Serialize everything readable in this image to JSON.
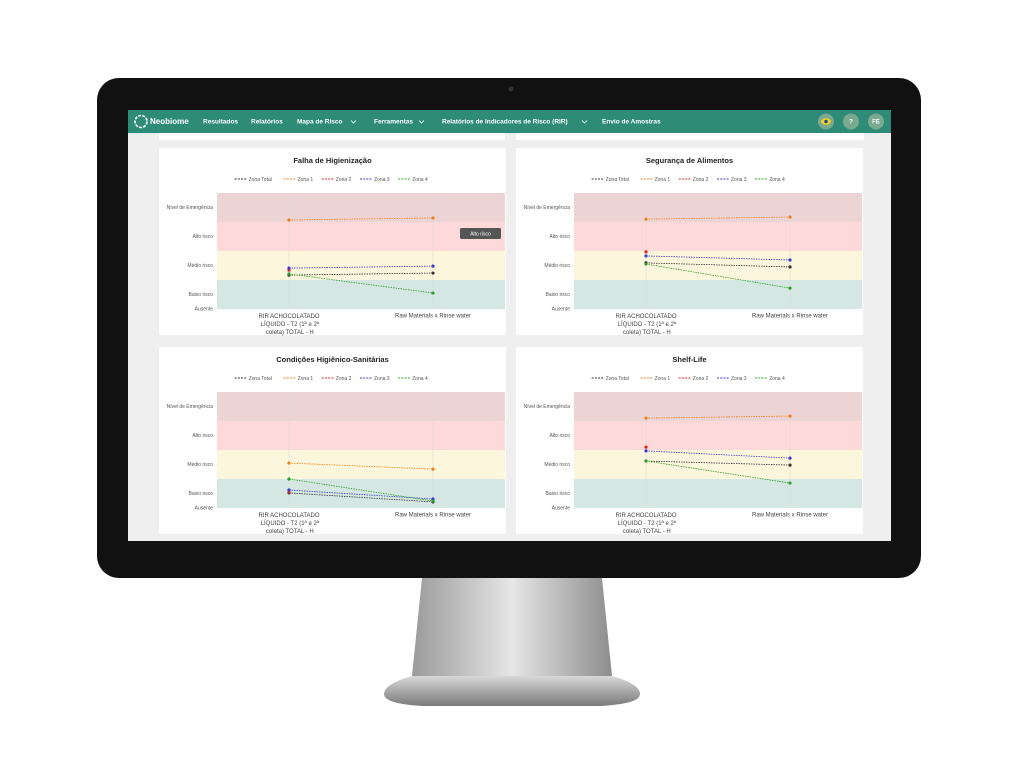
{
  "nav": {
    "brand": "Neobiome",
    "items": [
      "Resultados",
      "Relatórios",
      "Mapa de Risco",
      "Ferramentas",
      "Relatórios de Indicadores de Risco (RIR)",
      "Envio de Amostras"
    ],
    "help": "?",
    "user": "FE"
  },
  "chart_data": [
    {
      "type": "line",
      "title": "Falha de Higienização",
      "categories": [
        "RIR ACHOCOLATADO LÍQUIDO - T2 (1ª e 2ª coleta) TOTAL - H",
        "Raw Materials x Rinse water"
      ],
      "series": [
        {
          "name": "Zona Total",
          "color": "#333333",
          "values": [
            1.17,
            1.24
          ]
        },
        {
          "name": "Zona 1",
          "color": "#f0801e",
          "values": [
            3.07,
            3.14
          ]
        },
        {
          "name": "Zona 2",
          "color": "#e02424",
          "values": [
            1.34,
            null
          ]
        },
        {
          "name": "Zona 3",
          "color": "#3a3acc",
          "values": [
            1.41,
            1.48
          ]
        },
        {
          "name": "Zona 4",
          "color": "#2ca02c",
          "values": [
            1.21,
            0.55
          ]
        }
      ],
      "ylim": [
        0,
        4
      ],
      "yticks": [
        {
          "value": 0,
          "label": "Ausente"
        },
        {
          "value": 0.5,
          "label": "Baixo risco"
        },
        {
          "value": 1.5,
          "label": "Médio risco"
        },
        {
          "value": 2.5,
          "label": "Alto risco"
        },
        {
          "value": 3.5,
          "label": "Nível de Emergência"
        }
      ],
      "tooltip": "Alto risco"
    },
    {
      "type": "line",
      "title": "Segurança de Alimentos",
      "categories": [
        "RIR ACHOCOLATADO LÍQUIDO - T2 (1ª e 2ª coleta) TOTAL - H",
        "Raw Materials x Rinse water"
      ],
      "series": [
        {
          "name": "Zona Total",
          "color": "#333333",
          "values": [
            1.59,
            1.45
          ]
        },
        {
          "name": "Zona 1",
          "color": "#f0801e",
          "values": [
            3.1,
            3.17
          ]
        },
        {
          "name": "Zona 2",
          "color": "#e02424",
          "values": [
            1.97,
            null
          ]
        },
        {
          "name": "Zona 3",
          "color": "#3a3acc",
          "values": [
            1.83,
            1.69
          ]
        },
        {
          "name": "Zona 4",
          "color": "#2ca02c",
          "values": [
            1.55,
            0.72
          ]
        }
      ],
      "ylim": [
        0,
        4
      ],
      "yticks": [
        {
          "value": 0,
          "label": "Ausente"
        },
        {
          "value": 0.5,
          "label": "Baixo risco"
        },
        {
          "value": 1.5,
          "label": "Médio risco"
        },
        {
          "value": 2.5,
          "label": "Alto risco"
        },
        {
          "value": 3.5,
          "label": "Nível de Emergência"
        }
      ]
    },
    {
      "type": "line",
      "title": "Condições Higiênico-Sanitárias",
      "categories": [
        "RIR ACHOCOLATADO LÍQUIDO - T2 (1ª e 2ª coleta) TOTAL - H",
        "Raw Materials x Rinse water"
      ],
      "series": [
        {
          "name": "Zona Total",
          "color": "#333333",
          "values": [
            0.52,
            0.21
          ]
        },
        {
          "name": "Zona 1",
          "color": "#f0801e",
          "values": [
            1.55,
            1.34
          ]
        },
        {
          "name": "Zona 2",
          "color": "#e02424",
          "values": [
            0.55,
            null
          ]
        },
        {
          "name": "Zona 3",
          "color": "#3a3acc",
          "values": [
            0.62,
            0.31
          ]
        },
        {
          "name": "Zona 4",
          "color": "#2ca02c",
          "values": [
            1.0,
            0.24
          ]
        }
      ],
      "ylim": [
        0,
        4
      ],
      "yticks": [
        {
          "value": 0,
          "label": "Ausente"
        },
        {
          "value": 0.5,
          "label": "Baixo risco"
        },
        {
          "value": 1.5,
          "label": "Médio risco"
        },
        {
          "value": 2.5,
          "label": "Alto risco"
        },
        {
          "value": 3.5,
          "label": "Nível de Emergência"
        }
      ]
    },
    {
      "type": "line",
      "title": "Shelf-Life",
      "categories": [
        "RIR ACHOCOLATADO LÍQUIDO - T2 (1ª e 2ª coleta) TOTAL - H",
        "Raw Materials x Rinse water"
      ],
      "series": [
        {
          "name": "Zona Total",
          "color": "#333333",
          "values": [
            1.62,
            1.48
          ]
        },
        {
          "name": "Zona 1",
          "color": "#f0801e",
          "values": [
            3.1,
            3.17
          ]
        },
        {
          "name": "Zona 2",
          "color": "#e02424",
          "values": [
            2.1,
            null
          ]
        },
        {
          "name": "Zona 3",
          "color": "#3a3acc",
          "values": [
            1.97,
            1.72
          ]
        },
        {
          "name": "Zona 4",
          "color": "#2ca02c",
          "values": [
            1.62,
            0.86
          ]
        }
      ],
      "ylim": [
        0,
        4
      ],
      "yticks": [
        {
          "value": 0,
          "label": "Ausente"
        },
        {
          "value": 0.5,
          "label": "Baixo risco"
        },
        {
          "value": 1.5,
          "label": "Médio risco"
        },
        {
          "value": 2.5,
          "label": "Alto risco"
        },
        {
          "value": 3.5,
          "label": "Nível de Emergência"
        }
      ]
    }
  ]
}
